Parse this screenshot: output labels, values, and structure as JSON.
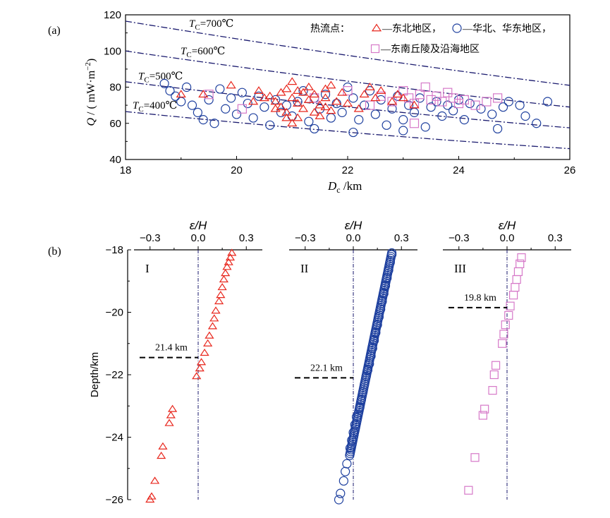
{
  "colors": {
    "ne": "#e8261c",
    "nc": "#1d3f9e",
    "se": "#d679c8",
    "isotherm": "#1a1a6e",
    "axis": "#000000"
  },
  "chart_data": [
    {
      "type": "scatter",
      "panel_label": "(a)",
      "xlabel_main": "D",
      "xlabel_sub": "c",
      "xlabel_unit": " /km",
      "ylabel_main": "Q",
      "ylabel_unit": " / ( mW·m",
      "ylabel_exp": "−2",
      "ylabel_close": ")",
      "xlim": [
        18,
        26
      ],
      "ylim": [
        40,
        120
      ],
      "xticks": [
        "18",
        "20",
        "22",
        "24",
        "26"
      ],
      "yticks": [
        "40",
        "60",
        "80",
        "100",
        "120"
      ],
      "isotherms": [
        {
          "label_main": "T",
          "label_sub": "C",
          "label_rest": "=700℃",
          "y18": 116.5,
          "y26": 81
        },
        {
          "label_main": "T",
          "label_sub": "C",
          "label_rest": "=600℃",
          "y18": 100,
          "y26": 69
        },
        {
          "label_main": "T",
          "label_sub": "C",
          "label_rest": "=500℃",
          "y18": 83,
          "y26": 57.5
        },
        {
          "label_main": "T",
          "label_sub": "C",
          "label_rest": "=400℃",
          "y18": 66.5,
          "y26": 46
        }
      ],
      "legend": {
        "prefix": "热流点：",
        "items": [
          "—东北地区，",
          "—华北、华东地区，",
          "—东南丘陵及沿海地区"
        ]
      },
      "series": [
        {
          "name": "—东北地区，",
          "marker": "triangle",
          "points": [
            [
              19.0,
              76
            ],
            [
              19.4,
              76
            ],
            [
              19.9,
              81
            ],
            [
              20.3,
              72
            ],
            [
              20.4,
              78
            ],
            [
              20.6,
              75
            ],
            [
              20.7,
              72
            ],
            [
              20.8,
              77
            ],
            [
              20.8,
              69
            ],
            [
              20.9,
              79
            ],
            [
              20.9,
              66
            ],
            [
              21.0,
              83
            ],
            [
              21.0,
              74
            ],
            [
              21.1,
              71
            ],
            [
              21.1,
              63
            ],
            [
              21.2,
              77
            ],
            [
              21.2,
              68
            ],
            [
              21.3,
              80
            ],
            [
              21.3,
              73
            ],
            [
              21.4,
              66
            ],
            [
              21.4,
              76
            ],
            [
              21.5,
              70
            ],
            [
              21.6,
              79
            ],
            [
              21.6,
              74
            ],
            [
              21.7,
              67
            ],
            [
              21.7,
              81
            ],
            [
              21.8,
              72
            ],
            [
              21.9,
              77
            ],
            [
              22.0,
              71
            ],
            [
              21.5,
              64
            ],
            [
              21.0,
              60
            ],
            [
              20.9,
              63
            ],
            [
              20.7,
              68
            ],
            [
              22.3,
              76
            ],
            [
              22.4,
              80
            ],
            [
              22.5,
              74
            ],
            [
              22.6,
              78
            ],
            [
              22.8,
              72
            ],
            [
              22.9,
              76
            ],
            [
              23.0,
              74
            ],
            [
              23.2,
              70
            ],
            [
              22.2,
              68
            ],
            [
              21.1,
              78
            ],
            [
              21.6,
              69
            ],
            [
              20.5,
              74
            ]
          ]
        },
        {
          "name": "—华北、华东地区，",
          "marker": "circle",
          "points": [
            [
              18.7,
              82
            ],
            [
              18.8,
              78
            ],
            [
              18.9,
              75
            ],
            [
              19.0,
              72
            ],
            [
              19.1,
              80
            ],
            [
              19.2,
              70
            ],
            [
              19.3,
              66
            ],
            [
              19.4,
              62
            ],
            [
              19.5,
              73
            ],
            [
              19.6,
              60
            ],
            [
              19.7,
              79
            ],
            [
              19.8,
              68
            ],
            [
              19.9,
              74
            ],
            [
              20.0,
              65
            ],
            [
              20.1,
              77
            ],
            [
              20.2,
              71
            ],
            [
              20.3,
              63
            ],
            [
              20.4,
              75
            ],
            [
              20.5,
              69
            ],
            [
              20.6,
              59
            ],
            [
              20.7,
              73
            ],
            [
              20.8,
              66
            ],
            [
              20.9,
              70
            ],
            [
              21.0,
              64
            ],
            [
              21.1,
              72
            ],
            [
              21.2,
              78
            ],
            [
              21.3,
              61
            ],
            [
              21.4,
              74
            ],
            [
              21.5,
              68
            ],
            [
              21.6,
              76
            ],
            [
              21.7,
              63
            ],
            [
              21.8,
              71
            ],
            [
              21.9,
              66
            ],
            [
              22.0,
              80
            ],
            [
              22.1,
              74
            ],
            [
              22.2,
              62
            ],
            [
              22.3,
              70
            ],
            [
              22.4,
              78
            ],
            [
              22.5,
              65
            ],
            [
              22.6,
              73
            ],
            [
              22.7,
              59
            ],
            [
              22.8,
              68
            ],
            [
              22.9,
              75
            ],
            [
              23.0,
              62
            ],
            [
              23.1,
              70
            ],
            [
              23.2,
              66
            ],
            [
              23.3,
              74
            ],
            [
              23.4,
              58
            ],
            [
              23.5,
              69
            ],
            [
              23.6,
              72
            ],
            [
              23.7,
              64
            ],
            [
              23.8,
              70
            ],
            [
              23.9,
              67
            ],
            [
              24.0,
              73
            ],
            [
              24.1,
              62
            ],
            [
              24.2,
              71
            ],
            [
              24.4,
              68
            ],
            [
              24.6,
              65
            ],
            [
              24.7,
              57
            ],
            [
              24.8,
              69
            ],
            [
              24.9,
              72
            ],
            [
              25.1,
              70
            ],
            [
              25.2,
              64
            ],
            [
              25.4,
              60
            ],
            [
              25.6,
              72
            ],
            [
              23.0,
              56
            ],
            [
              22.1,
              55
            ],
            [
              21.4,
              57
            ]
          ]
        },
        {
          "name": "—东南丘陵及沿海地区",
          "marker": "square",
          "points": [
            [
              19.5,
              76
            ],
            [
              20.1,
              68
            ],
            [
              21.4,
              74
            ],
            [
              22.0,
              78
            ],
            [
              22.6,
              75
            ],
            [
              22.8,
              72
            ],
            [
              23.0,
              78
            ],
            [
              23.1,
              74
            ],
            [
              23.2,
              71
            ],
            [
              23.3,
              76
            ],
            [
              23.4,
              80
            ],
            [
              23.5,
              73
            ],
            [
              23.6,
              75
            ],
            [
              23.7,
              72
            ],
            [
              23.8,
              77
            ],
            [
              23.9,
              74
            ],
            [
              24.0,
              71
            ],
            [
              24.1,
              73
            ],
            [
              24.3,
              70
            ],
            [
              24.5,
              72
            ],
            [
              24.7,
              74
            ],
            [
              22.4,
              70
            ],
            [
              23.2,
              60
            ]
          ]
        }
      ]
    },
    {
      "type": "scatter",
      "panel_label": "(b)",
      "top_axis_label_main": "ε",
      "top_axis_label_rest": "/H",
      "ylabel": "Depth/km",
      "xlim": [
        -0.4,
        0.4
      ],
      "ylim": [
        -26,
        -18
      ],
      "xticks": [
        "−0.3",
        "0.0",
        "0.3"
      ],
      "yticks": [
        "−18",
        "−20",
        "−22",
        "−24",
        "−26"
      ],
      "subpanels": [
        {
          "roman": "I",
          "marker": "triangle",
          "depth_label": "21.4 km",
          "depth": -21.45,
          "points": [
            [
              0.21,
              -18.1
            ],
            [
              0.2,
              -18.25
            ],
            [
              0.19,
              -18.4
            ],
            [
              0.18,
              -18.55
            ],
            [
              0.17,
              -18.75
            ],
            [
              0.16,
              -18.95
            ],
            [
              0.15,
              -19.2
            ],
            [
              0.14,
              -19.45
            ],
            [
              0.13,
              -19.65
            ],
            [
              0.11,
              -19.95
            ],
            [
              0.1,
              -20.2
            ],
            [
              0.09,
              -20.45
            ],
            [
              0.07,
              -20.75
            ],
            [
              0.06,
              -21.0
            ],
            [
              0.04,
              -21.3
            ],
            [
              0.02,
              -21.6
            ],
            [
              0.01,
              -21.8
            ],
            [
              -0.01,
              -22.05
            ],
            [
              -0.16,
              -23.1
            ],
            [
              -0.17,
              -23.3
            ],
            [
              -0.18,
              -23.55
            ],
            [
              -0.22,
              -24.3
            ],
            [
              -0.23,
              -24.6
            ],
            [
              -0.27,
              -25.4
            ],
            [
              -0.29,
              -25.9
            ],
            [
              -0.3,
              -26.0
            ]
          ]
        },
        {
          "roman": "II",
          "marker": "circle",
          "depth_label": "22.1 km",
          "depth": -22.1,
          "points": [
            [
              0.24,
              -18.15
            ],
            [
              0.23,
              -18.4
            ],
            [
              0.22,
              -18.65
            ],
            [
              0.21,
              -18.9
            ],
            [
              0.2,
              -19.15
            ],
            [
              0.19,
              -19.4
            ],
            [
              0.18,
              -19.65
            ],
            [
              0.17,
              -19.9
            ],
            [
              0.16,
              -20.15
            ],
            [
              0.15,
              -20.4
            ],
            [
              0.14,
              -20.65
            ],
            [
              0.13,
              -20.9
            ],
            [
              0.12,
              -21.15
            ],
            [
              0.11,
              -21.4
            ],
            [
              0.1,
              -21.65
            ],
            [
              0.09,
              -21.85
            ],
            [
              0.08,
              -22.05
            ],
            [
              0.07,
              -22.3
            ],
            [
              0.06,
              -22.55
            ],
            [
              0.05,
              -22.8
            ],
            [
              0.04,
              -23.05
            ],
            [
              0.02,
              -23.35
            ],
            [
              0.01,
              -23.6
            ],
            [
              0.0,
              -23.85
            ],
            [
              -0.01,
              -24.1
            ],
            [
              -0.02,
              -24.35
            ],
            [
              -0.04,
              -24.85
            ],
            [
              -0.05,
              -25.1
            ],
            [
              -0.06,
              -25.4
            ],
            [
              -0.08,
              -25.8
            ],
            [
              -0.09,
              -26.0
            ]
          ]
        },
        {
          "roman": "III",
          "marker": "square",
          "depth_label": "19.8 km",
          "depth": -19.85,
          "points": [
            [
              0.09,
              -18.25
            ],
            [
              0.08,
              -18.45
            ],
            [
              0.07,
              -18.7
            ],
            [
              0.06,
              -18.95
            ],
            [
              0.05,
              -19.2
            ],
            [
              0.04,
              -19.45
            ],
            [
              0.02,
              -19.8
            ],
            [
              0.01,
              -20.1
            ],
            [
              -0.01,
              -20.4
            ],
            [
              -0.02,
              -20.7
            ],
            [
              -0.03,
              -21.0
            ],
            [
              -0.07,
              -21.7
            ],
            [
              -0.08,
              -22.0
            ],
            [
              -0.09,
              -22.5
            ],
            [
              -0.14,
              -23.1
            ],
            [
              -0.15,
              -23.3
            ],
            [
              -0.2,
              -24.65
            ],
            [
              -0.24,
              -25.7
            ]
          ]
        }
      ]
    }
  ]
}
